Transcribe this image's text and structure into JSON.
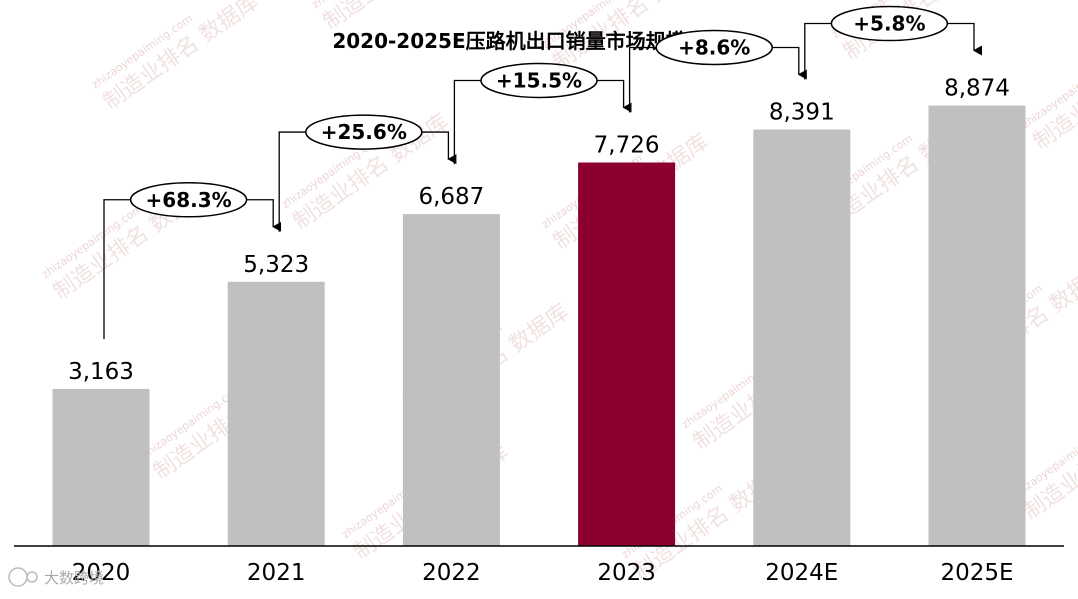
{
  "chart_data": {
    "type": "bar",
    "title": "2020-2025E压路机出口销量市场规模（台）",
    "categories": [
      "2020",
      "2021",
      "2022",
      "2023",
      "2024E",
      "2025E"
    ],
    "values": [
      3163,
      5323,
      6687,
      7726,
      8391,
      8874
    ],
    "value_labels": [
      "3,163",
      "5,323",
      "6,687",
      "7,726",
      "8,391",
      "8,874"
    ],
    "growth_labels": [
      "+68.3%",
      "+25.6%",
      "+15.5%",
      "+8.6%",
      "+5.8%"
    ],
    "ylim": [
      0,
      11000
    ],
    "grid": false,
    "legend": "none",
    "colors": {
      "bar": "#c0c0c0",
      "highlight": "#8b0030",
      "highlight_index": 3
    }
  },
  "watermark": {
    "text": "制造业排名 数据库",
    "url": "zhizaoyepaiming.com"
  },
  "brand_text": "大数跨境"
}
